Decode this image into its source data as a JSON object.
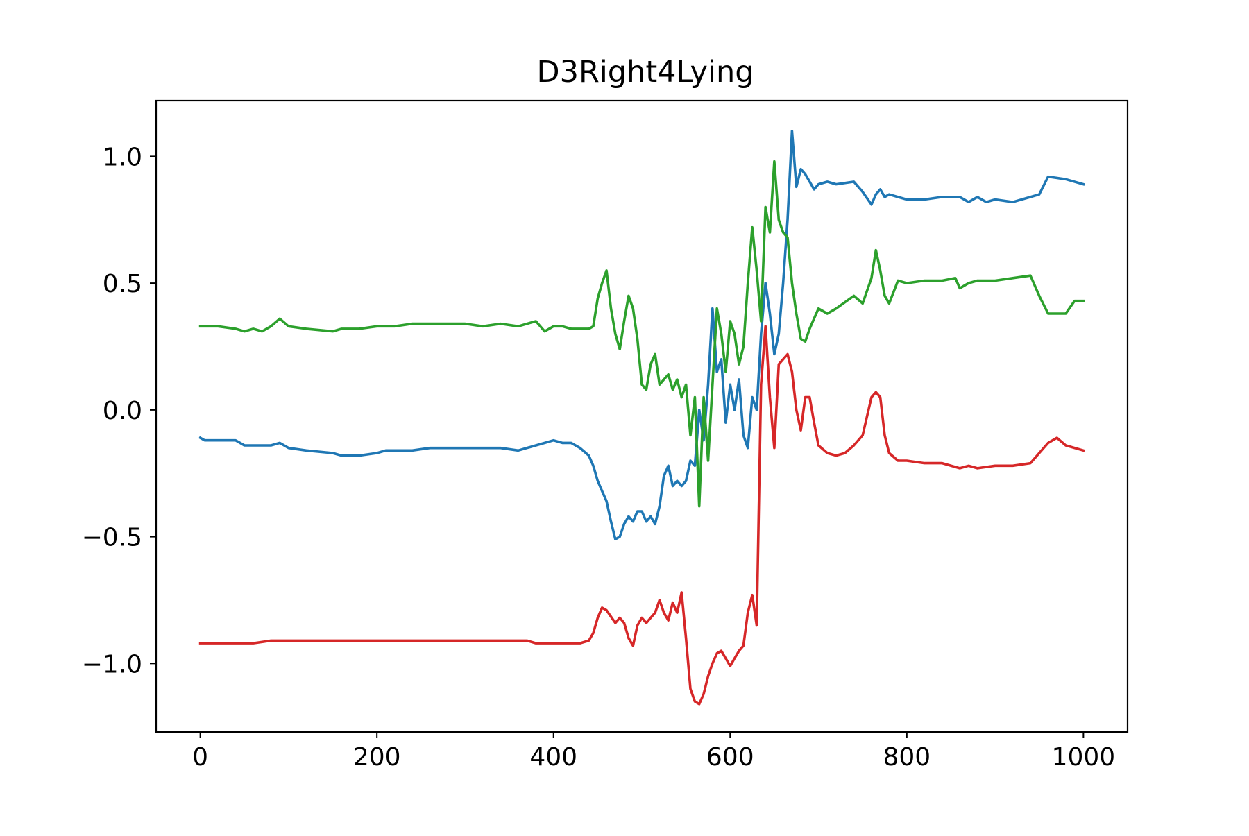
{
  "chart_data": {
    "type": "line",
    "title": "D3Right4Lying",
    "xlabel": "",
    "ylabel": "",
    "xlim": [
      -50,
      1050
    ],
    "ylim": [
      -1.27,
      1.22
    ],
    "grid": false,
    "legend": "none",
    "xticks": [
      0,
      200,
      400,
      600,
      800,
      1000
    ],
    "xtick_labels": [
      "0",
      "200",
      "400",
      "600",
      "800",
      "1000"
    ],
    "yticks": [
      -1.0,
      -0.5,
      0.0,
      0.5,
      1.0
    ],
    "ytick_labels": [
      "−1.0",
      "−0.5",
      "0.0",
      "0.5",
      "1.0"
    ],
    "series": [
      {
        "color": "#1f77b4",
        "x": [
          0,
          5,
          10,
          20,
          40,
          50,
          60,
          80,
          90,
          100,
          120,
          150,
          160,
          180,
          200,
          210,
          220,
          240,
          260,
          280,
          300,
          320,
          340,
          360,
          380,
          390,
          400,
          410,
          420,
          430,
          440,
          445,
          450,
          455,
          460,
          465,
          470,
          475,
          480,
          485,
          490,
          495,
          500,
          505,
          510,
          515,
          520,
          525,
          530,
          535,
          540,
          545,
          550,
          555,
          560,
          565,
          570,
          575,
          580,
          585,
          590,
          595,
          600,
          605,
          610,
          615,
          620,
          625,
          630,
          635,
          640,
          645,
          650,
          655,
          660,
          665,
          670,
          675,
          680,
          685,
          690,
          695,
          700,
          710,
          720,
          740,
          750,
          760,
          765,
          770,
          775,
          780,
          790,
          800,
          820,
          840,
          860,
          870,
          880,
          890,
          900,
          920,
          940,
          950,
          960,
          980,
          1000
        ],
        "y": [
          -0.11,
          -0.12,
          -0.12,
          -0.12,
          -0.12,
          -0.14,
          -0.14,
          -0.14,
          -0.13,
          -0.15,
          -0.16,
          -0.17,
          -0.18,
          -0.18,
          -0.17,
          -0.16,
          -0.16,
          -0.16,
          -0.15,
          -0.15,
          -0.15,
          -0.15,
          -0.15,
          -0.16,
          -0.14,
          -0.13,
          -0.12,
          -0.13,
          -0.13,
          -0.15,
          -0.18,
          -0.22,
          -0.28,
          -0.32,
          -0.36,
          -0.44,
          -0.51,
          -0.5,
          -0.45,
          -0.42,
          -0.44,
          -0.4,
          -0.4,
          -0.44,
          -0.42,
          -0.45,
          -0.38,
          -0.26,
          -0.22,
          -0.3,
          -0.28,
          -0.3,
          -0.28,
          -0.2,
          -0.22,
          0.0,
          -0.12,
          0.1,
          0.4,
          0.15,
          0.2,
          -0.05,
          0.1,
          0.0,
          0.12,
          -0.1,
          -0.15,
          0.05,
          0.0,
          0.3,
          0.5,
          0.38,
          0.22,
          0.3,
          0.5,
          0.75,
          1.1,
          0.88,
          0.95,
          0.93,
          0.9,
          0.87,
          0.89,
          0.9,
          0.89,
          0.9,
          0.86,
          0.81,
          0.85,
          0.87,
          0.84,
          0.85,
          0.84,
          0.83,
          0.83,
          0.84,
          0.84,
          0.82,
          0.84,
          0.82,
          0.83,
          0.82,
          0.84,
          0.85,
          0.92,
          0.91,
          0.89
        ]
      },
      {
        "color": "#2ca02c",
        "x": [
          0,
          10,
          20,
          40,
          50,
          60,
          70,
          80,
          90,
          100,
          120,
          150,
          160,
          180,
          200,
          220,
          240,
          260,
          280,
          300,
          320,
          340,
          360,
          370,
          380,
          390,
          400,
          410,
          420,
          430,
          440,
          445,
          450,
          455,
          460,
          465,
          470,
          475,
          480,
          485,
          490,
          495,
          500,
          505,
          510,
          515,
          520,
          525,
          530,
          535,
          540,
          545,
          550,
          555,
          560,
          565,
          570,
          575,
          580,
          585,
          590,
          595,
          600,
          605,
          610,
          615,
          620,
          625,
          630,
          635,
          640,
          645,
          650,
          655,
          660,
          665,
          670,
          675,
          680,
          685,
          690,
          700,
          710,
          720,
          740,
          750,
          760,
          765,
          770,
          775,
          780,
          790,
          800,
          820,
          840,
          855,
          860,
          870,
          880,
          900,
          920,
          940,
          950,
          960,
          980,
          990,
          1000
        ],
        "y": [
          0.33,
          0.33,
          0.33,
          0.32,
          0.31,
          0.32,
          0.31,
          0.33,
          0.36,
          0.33,
          0.32,
          0.31,
          0.32,
          0.32,
          0.33,
          0.33,
          0.34,
          0.34,
          0.34,
          0.34,
          0.33,
          0.34,
          0.33,
          0.34,
          0.35,
          0.31,
          0.33,
          0.33,
          0.32,
          0.32,
          0.32,
          0.33,
          0.44,
          0.5,
          0.55,
          0.4,
          0.3,
          0.24,
          0.35,
          0.45,
          0.4,
          0.28,
          0.1,
          0.08,
          0.18,
          0.22,
          0.1,
          0.12,
          0.14,
          0.08,
          0.12,
          0.05,
          0.1,
          -0.1,
          0.05,
          -0.38,
          0.05,
          -0.2,
          0.1,
          0.4,
          0.3,
          0.15,
          0.35,
          0.3,
          0.18,
          0.25,
          0.5,
          0.72,
          0.55,
          0.35,
          0.8,
          0.7,
          0.98,
          0.75,
          0.7,
          0.68,
          0.5,
          0.38,
          0.28,
          0.27,
          0.32,
          0.4,
          0.38,
          0.4,
          0.45,
          0.42,
          0.52,
          0.63,
          0.55,
          0.45,
          0.42,
          0.51,
          0.5,
          0.51,
          0.51,
          0.52,
          0.48,
          0.5,
          0.51,
          0.51,
          0.52,
          0.53,
          0.45,
          0.38,
          0.38,
          0.43,
          0.43
        ]
      },
      {
        "color": "#d62728",
        "x": [
          0,
          10,
          20,
          40,
          60,
          80,
          100,
          120,
          150,
          180,
          200,
          240,
          280,
          320,
          360,
          370,
          380,
          390,
          400,
          410,
          420,
          430,
          440,
          445,
          450,
          455,
          460,
          470,
          475,
          480,
          485,
          490,
          495,
          500,
          505,
          510,
          515,
          520,
          525,
          530,
          535,
          540,
          545,
          550,
          555,
          560,
          565,
          570,
          575,
          580,
          585,
          590,
          595,
          600,
          605,
          610,
          615,
          620,
          625,
          630,
          635,
          640,
          645,
          650,
          655,
          660,
          665,
          670,
          675,
          680,
          685,
          690,
          695,
          700,
          710,
          720,
          730,
          740,
          750,
          760,
          765,
          770,
          775,
          780,
          790,
          800,
          820,
          840,
          860,
          870,
          880,
          900,
          920,
          940,
          950,
          960,
          970,
          980,
          1000
        ],
        "y": [
          -0.92,
          -0.92,
          -0.92,
          -0.92,
          -0.92,
          -0.91,
          -0.91,
          -0.91,
          -0.91,
          -0.91,
          -0.91,
          -0.91,
          -0.91,
          -0.91,
          -0.91,
          -0.91,
          -0.92,
          -0.92,
          -0.92,
          -0.92,
          -0.92,
          -0.92,
          -0.91,
          -0.88,
          -0.82,
          -0.78,
          -0.79,
          -0.84,
          -0.82,
          -0.84,
          -0.9,
          -0.93,
          -0.85,
          -0.82,
          -0.84,
          -0.82,
          -0.8,
          -0.75,
          -0.8,
          -0.83,
          -0.76,
          -0.8,
          -0.72,
          -0.9,
          -1.1,
          -1.15,
          -1.16,
          -1.12,
          -1.05,
          -1.0,
          -0.96,
          -0.95,
          -0.98,
          -1.01,
          -0.98,
          -0.95,
          -0.93,
          -0.8,
          -0.73,
          -0.85,
          0.1,
          0.33,
          0.05,
          -0.15,
          0.18,
          0.2,
          0.22,
          0.15,
          0.0,
          -0.08,
          0.05,
          0.05,
          -0.05,
          -0.14,
          -0.17,
          -0.18,
          -0.17,
          -0.14,
          -0.1,
          0.05,
          0.07,
          0.05,
          -0.1,
          -0.17,
          -0.2,
          -0.2,
          -0.21,
          -0.21,
          -0.23,
          -0.22,
          -0.23,
          -0.22,
          -0.22,
          -0.21,
          -0.17,
          -0.13,
          -0.11,
          -0.14,
          -0.16
        ]
      }
    ]
  }
}
